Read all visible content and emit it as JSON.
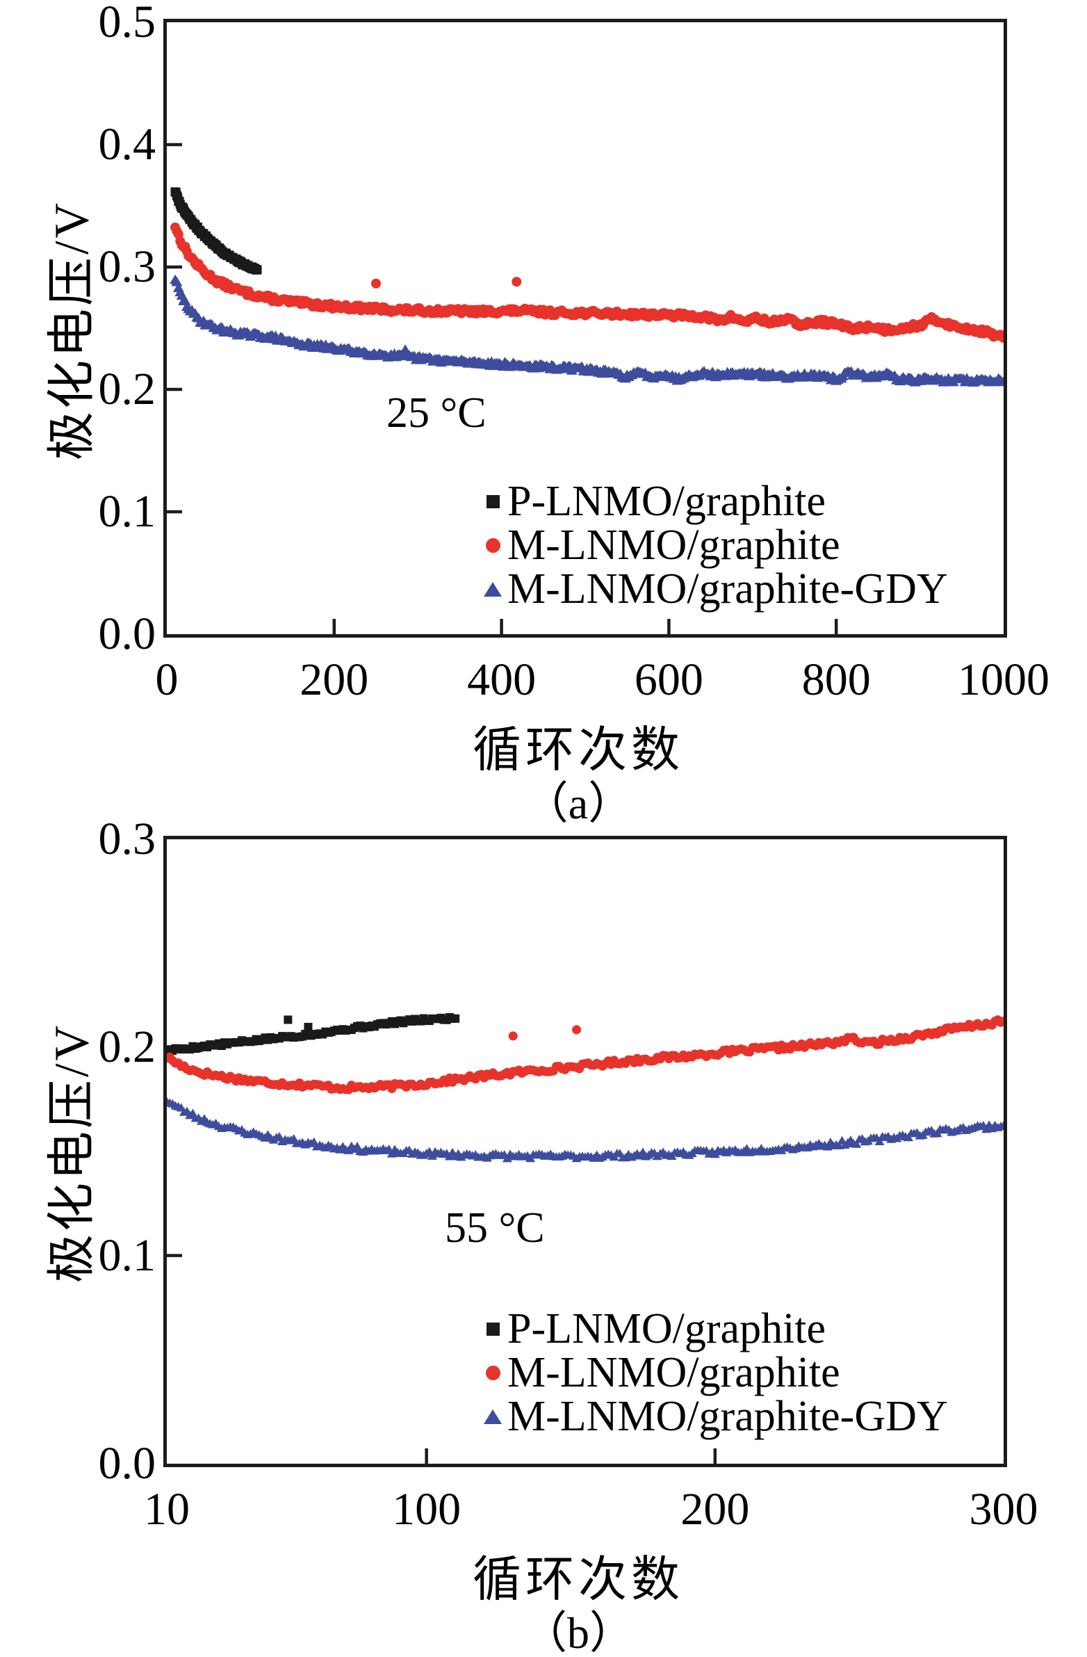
{
  "figure": {
    "background": "#ffffff",
    "axis_color": "#1c1c1c",
    "series_colors": {
      "black": "#1a1a1a",
      "red": "#e7332b",
      "blue": "#3e4c9e"
    }
  },
  "chart_data": [
    {
      "id": "a",
      "type": "scatter",
      "annotation": "25 °C",
      "caption": "（a）",
      "xlabel": "循环次数",
      "ylabel": "极化电压/V",
      "xlim": [
        0,
        1000
      ],
      "ylim": [
        0.0,
        0.5
      ],
      "x_ticks": [
        0,
        200,
        400,
        600,
        800,
        1000
      ],
      "x_tick_labels": [
        "0",
        "200",
        "400",
        "600",
        "800",
        "1000"
      ],
      "y_ticks": [
        0.0,
        0.1,
        0.2,
        0.3,
        0.4,
        0.5
      ],
      "y_tick_labels": [
        "0.0",
        "0.1",
        "0.2",
        "0.3",
        "0.4",
        "0.5"
      ],
      "grid": false,
      "legend_position": "inside-bottom-right",
      "series": [
        {
          "name": "P-LNMO/graphite",
          "marker": "square",
          "color": "#1a1a1a",
          "anchors": [
            [
              10,
              0.362
            ],
            [
              13,
              0.356
            ],
            [
              16,
              0.3515
            ],
            [
              20,
              0.3465
            ],
            [
              25,
              0.3415
            ],
            [
              30,
              0.337
            ],
            [
              35,
              0.333
            ],
            [
              40,
              0.3293
            ],
            [
              45,
              0.3258
            ],
            [
              50,
              0.3225
            ],
            [
              55,
              0.3193
            ],
            [
              60,
              0.3163
            ],
            [
              65,
              0.3135
            ],
            [
              70,
              0.311
            ],
            [
              75,
              0.3087
            ],
            [
              80,
              0.3066
            ],
            [
              85,
              0.3047
            ],
            [
              90,
              0.303
            ],
            [
              95,
              0.3013
            ],
            [
              100,
              0.2998
            ],
            [
              104,
              0.2987
            ],
            [
              108,
              0.2978
            ]
          ],
          "outliers": []
        },
        {
          "name": "M-LNMO/graphite",
          "marker": "circle",
          "color": "#e7332b",
          "anchors": [
            [
              10,
              0.3335
            ],
            [
              13,
              0.3275
            ],
            [
              16,
              0.3225
            ],
            [
              20,
              0.317
            ],
            [
              25,
              0.3115
            ],
            [
              30,
              0.3068
            ],
            [
              35,
              0.3028
            ],
            [
              40,
              0.2992
            ],
            [
              45,
              0.296
            ],
            [
              50,
              0.2932
            ],
            [
              60,
              0.2885
            ],
            [
              70,
              0.2852
            ],
            [
              80,
              0.2824
            ],
            [
              90,
              0.28
            ],
            [
              100,
              0.278
            ],
            [
              115,
              0.2755
            ],
            [
              130,
              0.2735
            ],
            [
              150,
              0.2714
            ],
            [
              170,
              0.2698
            ],
            [
              190,
              0.2684
            ],
            [
              215,
              0.2671
            ],
            [
              240,
              0.2661
            ],
            [
              270,
              0.2651
            ],
            [
              300,
              0.2644
            ],
            [
              340,
              0.2639
            ],
            [
              380,
              0.2636
            ],
            [
              420,
              0.2643
            ],
            [
              460,
              0.2627
            ],
            [
              500,
              0.2624
            ],
            [
              540,
              0.2617
            ],
            [
              580,
              0.2611
            ],
            [
              610,
              0.2604
            ],
            [
              640,
              0.2597
            ],
            [
              660,
              0.2562
            ],
            [
              675,
              0.2592
            ],
            [
              690,
              0.2554
            ],
            [
              705,
              0.2584
            ],
            [
              720,
              0.2544
            ],
            [
              740,
              0.2574
            ],
            [
              760,
              0.2524
            ],
            [
              780,
              0.2554
            ],
            [
              800,
              0.2534
            ],
            [
              820,
              0.2494
            ],
            [
              840,
              0.2514
            ],
            [
              860,
              0.2484
            ],
            [
              880,
              0.2504
            ],
            [
              900,
              0.2524
            ],
            [
              915,
              0.2574
            ],
            [
              930,
              0.2544
            ],
            [
              945,
              0.2504
            ],
            [
              960,
              0.2494
            ],
            [
              975,
              0.2474
            ],
            [
              990,
              0.2444
            ],
            [
              1000,
              0.2424
            ]
          ],
          "outliers": [
            [
              250,
              0.2865
            ],
            [
              418,
              0.288
            ]
          ]
        },
        {
          "name": "M-LNMO/graphite-GDY",
          "marker": "triangle",
          "color": "#3e4c9e",
          "anchors": [
            [
              10,
              0.2905
            ],
            [
              13,
              0.2841
            ],
            [
              16,
              0.2786
            ],
            [
              20,
              0.2731
            ],
            [
              25,
              0.2676
            ],
            [
              30,
              0.2631
            ],
            [
              35,
              0.2596
            ],
            [
              40,
              0.2566
            ],
            [
              45,
              0.2546
            ],
            [
              50,
              0.2526
            ],
            [
              60,
              0.2501
            ],
            [
              70,
              0.2481
            ],
            [
              80,
              0.2466
            ],
            [
              90,
              0.2456
            ],
            [
              100,
              0.2446
            ],
            [
              115,
              0.2436
            ],
            [
              130,
              0.2421
            ],
            [
              150,
              0.2386
            ],
            [
              170,
              0.2361
            ],
            [
              190,
              0.2346
            ],
            [
              215,
              0.2321
            ],
            [
              240,
              0.2296
            ],
            [
              270,
              0.2276
            ],
            [
              300,
              0.2256
            ],
            [
              340,
              0.2231
            ],
            [
              380,
              0.2216
            ],
            [
              420,
              0.2196
            ],
            [
              460,
              0.2181
            ],
            [
              500,
              0.2166
            ],
            [
              530,
              0.2136
            ],
            [
              550,
              0.2106
            ],
            [
              565,
              0.2136
            ],
            [
              580,
              0.2106
            ],
            [
              595,
              0.2126
            ],
            [
              610,
              0.2086
            ],
            [
              625,
              0.2116
            ],
            [
              640,
              0.2136
            ],
            [
              660,
              0.2116
            ],
            [
              680,
              0.2131
            ],
            [
              700,
              0.2126
            ],
            [
              720,
              0.2116
            ],
            [
              740,
              0.2106
            ],
            [
              760,
              0.2116
            ],
            [
              780,
              0.2106
            ],
            [
              800,
              0.2086
            ],
            [
              815,
              0.2136
            ],
            [
              830,
              0.2116
            ],
            [
              845,
              0.2106
            ],
            [
              860,
              0.2126
            ],
            [
              875,
              0.2086
            ],
            [
              890,
              0.2076
            ],
            [
              910,
              0.2086
            ],
            [
              930,
              0.2076
            ],
            [
              950,
              0.2076
            ],
            [
              975,
              0.2071
            ],
            [
              1000,
              0.2076
            ]
          ],
          "outliers": [
            [
              285,
              0.2325
            ]
          ]
        }
      ]
    },
    {
      "id": "b",
      "type": "scatter",
      "annotation": "55 °C",
      "caption": "（b）",
      "xlabel": "循环次数",
      "ylabel": "极化电压/V",
      "xlim": [
        10,
        300
      ],
      "ylim": [
        0.0,
        0.3
      ],
      "x_ticks": [
        10,
        100,
        200,
        300
      ],
      "x_tick_labels": [
        "10",
        "100",
        "200",
        "300"
      ],
      "y_ticks": [
        0.0,
        0.1,
        0.2,
        0.3
      ],
      "y_tick_labels": [
        "0.0",
        "0.1",
        "0.2",
        "0.3"
      ],
      "grid": false,
      "legend_position": "inside-bottom-right",
      "series": [
        {
          "name": "P-LNMO/graphite",
          "marker": "square",
          "color": "#1a1a1a",
          "anchors": [
            [
              10,
              0.1985
            ],
            [
              20,
              0.2001
            ],
            [
              30,
              0.2016
            ],
            [
              40,
              0.2033
            ],
            [
              50,
              0.2048
            ],
            [
              60,
              0.2063
            ],
            [
              70,
              0.2083
            ],
            [
              80,
              0.2103
            ],
            [
              90,
              0.2122
            ],
            [
              100,
              0.2133
            ],
            [
              110,
              0.2141
            ]
          ],
          "outliers": [
            [
              52,
              0.2133
            ],
            [
              59,
              0.2098
            ]
          ]
        },
        {
          "name": "M-LNMO/graphite",
          "marker": "circle",
          "color": "#e7332b",
          "anchors": [
            [
              10,
              0.1955
            ],
            [
              15,
              0.1912
            ],
            [
              20,
              0.1886
            ],
            [
              25,
              0.187
            ],
            [
              30,
              0.1858
            ],
            [
              40,
              0.1838
            ],
            [
              50,
              0.1826
            ],
            [
              60,
              0.1818
            ],
            [
              70,
              0.1806
            ],
            [
              80,
              0.1808
            ],
            [
              90,
              0.1815
            ],
            [
              100,
              0.1827
            ],
            [
              110,
              0.1845
            ],
            [
              120,
              0.1862
            ],
            [
              130,
              0.1878
            ],
            [
              140,
              0.1892
            ],
            [
              150,
              0.1905
            ],
            [
              160,
              0.192
            ],
            [
              170,
              0.1935
            ],
            [
              180,
              0.1948
            ],
            [
              190,
              0.1958
            ],
            [
              200,
              0.1972
            ],
            [
              210,
              0.1984
            ],
            [
              220,
              0.1996
            ],
            [
              230,
              0.2007
            ],
            [
              240,
              0.2021
            ],
            [
              248,
              0.2042
            ],
            [
              252,
              0.2018
            ],
            [
              258,
              0.2028
            ],
            [
              270,
              0.2055
            ],
            [
              280,
              0.2082
            ],
            [
              290,
              0.2105
            ],
            [
              300,
              0.2125
            ]
          ],
          "outliers": [
            [
              130,
              0.2055
            ],
            [
              152,
              0.2085
            ]
          ]
        },
        {
          "name": "M-LNMO/graphite-GDY",
          "marker": "triangle",
          "color": "#3e4c9e",
          "anchors": [
            [
              10,
              0.1745
            ],
            [
              15,
              0.1702
            ],
            [
              20,
              0.1666
            ],
            [
              25,
              0.164
            ],
            [
              30,
              0.1618
            ],
            [
              40,
              0.1585
            ],
            [
              50,
              0.1558
            ],
            [
              60,
              0.1537
            ],
            [
              70,
              0.152
            ],
            [
              80,
              0.1507
            ],
            [
              90,
              0.1497
            ],
            [
              100,
              0.149
            ],
            [
              110,
              0.1485
            ],
            [
              120,
              0.148
            ],
            [
              135,
              0.1477
            ],
            [
              150,
              0.1477
            ],
            [
              165,
              0.148
            ],
            [
              180,
              0.1487
            ],
            [
              200,
              0.1497
            ],
            [
              220,
              0.1512
            ],
            [
              240,
              0.1535
            ],
            [
              255,
              0.1555
            ],
            [
              270,
              0.1585
            ],
            [
              280,
              0.1601
            ],
            [
              290,
              0.1615
            ],
            [
              300,
              0.1625
            ]
          ],
          "outliers": []
        }
      ]
    }
  ]
}
